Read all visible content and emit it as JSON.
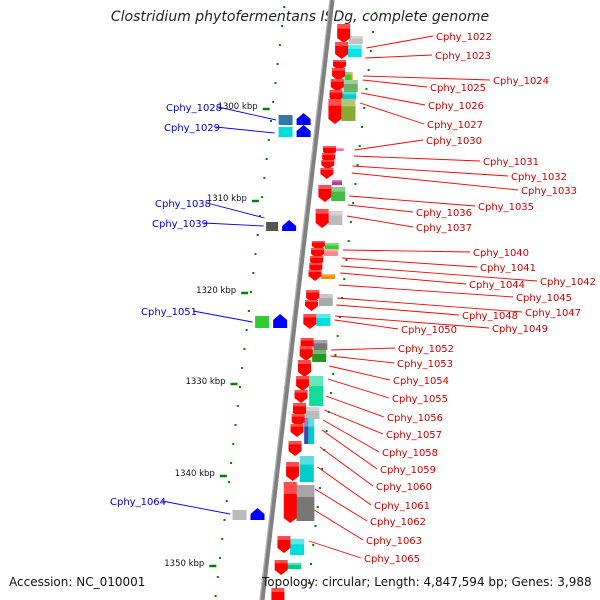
{
  "title": "Clostridium phytofermentans ISDg, complete genome",
  "footer": {
    "accession": "Accession: NC_010001",
    "topology": "Topology: circular; Length: 4,847,594 bp; Genes: 3,988"
  },
  "colors": {
    "backbone": "#808080",
    "forward_strand_arrow": "#ff0000",
    "reverse_strand_arrow": "#0000ff",
    "forward_label": "#cc0000",
    "reverse_label": "#0000cc",
    "tick": "#008000"
  },
  "ruler": [
    "1300 kbp",
    "1310 kbp",
    "1320 kbp",
    "1330 kbp",
    "1340 kbp",
    "1350 kbp"
  ],
  "forward_genes": [
    {
      "name": "Cphy_1022"
    },
    {
      "name": "Cphy_1023"
    },
    {
      "name": "Cphy_1024"
    },
    {
      "name": "Cphy_1025"
    },
    {
      "name": "Cphy_1026"
    },
    {
      "name": "Cphy_1027"
    },
    {
      "name": "Cphy_1030"
    },
    {
      "name": "Cphy_1031"
    },
    {
      "name": "Cphy_1032"
    },
    {
      "name": "Cphy_1033"
    },
    {
      "name": "Cphy_1035"
    },
    {
      "name": "Cphy_1036"
    },
    {
      "name": "Cphy_1037"
    },
    {
      "name": "Cphy_1040"
    },
    {
      "name": "Cphy_1041"
    },
    {
      "name": "Cphy_1042"
    },
    {
      "name": "Cphy_1044"
    },
    {
      "name": "Cphy_1045"
    },
    {
      "name": "Cphy_1047"
    },
    {
      "name": "Cphy_1048"
    },
    {
      "name": "Cphy_1049"
    },
    {
      "name": "Cphy_1050"
    },
    {
      "name": "Cphy_1052"
    },
    {
      "name": "Cphy_1053"
    },
    {
      "name": "Cphy_1054"
    },
    {
      "name": "Cphy_1055"
    },
    {
      "name": "Cphy_1056"
    },
    {
      "name": "Cphy_1057"
    },
    {
      "name": "Cphy_1058"
    },
    {
      "name": "Cphy_1059"
    },
    {
      "name": "Cphy_1060"
    },
    {
      "name": "Cphy_1061"
    },
    {
      "name": "Cphy_1062"
    },
    {
      "name": "Cphy_1063"
    },
    {
      "name": "Cphy_1065"
    }
  ],
  "reverse_genes": [
    {
      "name": "Cphy_1028"
    },
    {
      "name": "Cphy_1029"
    },
    {
      "name": "Cphy_1038"
    },
    {
      "name": "Cphy_1039"
    },
    {
      "name": "Cphy_1051"
    },
    {
      "name": "Cphy_1064"
    }
  ]
}
